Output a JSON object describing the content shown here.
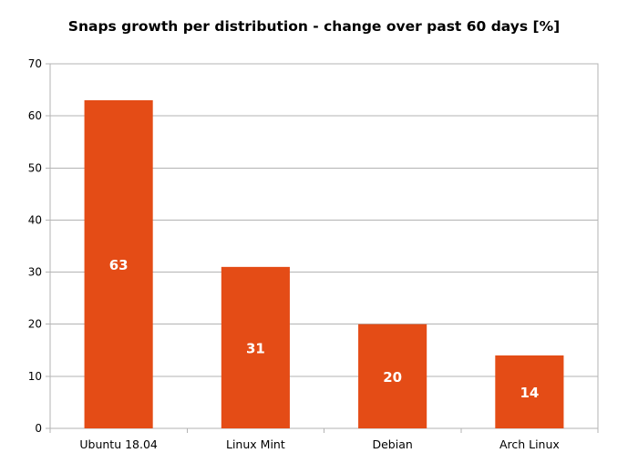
{
  "chart_data": {
    "type": "bar",
    "title": "Snaps growth per distribution - change over past 60 days [%]",
    "xlabel": "",
    "ylabel": "",
    "categories": [
      "Ubuntu 18.04",
      "Linux Mint",
      "Debian",
      "Arch Linux"
    ],
    "values": [
      63,
      31,
      20,
      14
    ],
    "data_labels": [
      "63",
      "31",
      "20",
      "14"
    ],
    "ylim": [
      0,
      70
    ],
    "yticks": [
      0,
      10,
      20,
      30,
      40,
      50,
      60,
      70
    ],
    "grid": true,
    "legend": "none",
    "colors": {
      "bar": "#E44C16",
      "grid": "#b3b3b3",
      "axis": "#b3b3b3",
      "data_label": "#ffffff"
    }
  }
}
